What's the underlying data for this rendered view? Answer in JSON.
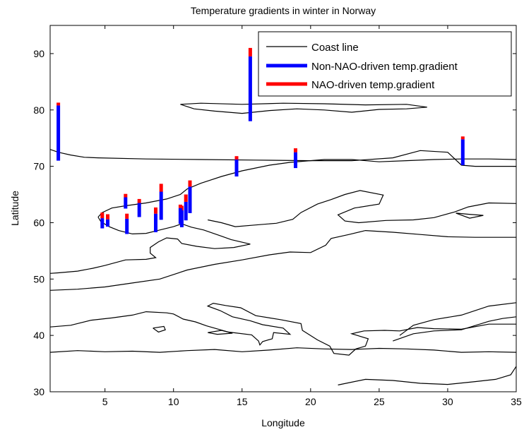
{
  "chart_data": {
    "type": "bar",
    "title": "Temperature gradients in winter in Norway",
    "xlabel": "Longitude",
    "ylabel": "Latitude",
    "xlim": [
      1,
      35
    ],
    "ylim": [
      30,
      95
    ],
    "xticks": [
      5,
      10,
      15,
      20,
      25,
      30,
      35
    ],
    "yticks": [
      30,
      40,
      50,
      60,
      70,
      80,
      90
    ],
    "grid": false,
    "legend_position": "top-right",
    "colors": {
      "coast": "#000000",
      "non_nao": "#0000ff",
      "nao": "#ff0000"
    },
    "legend": [
      {
        "label": "Coast line",
        "kind": "line",
        "color": "#000000"
      },
      {
        "label": "Non-NAO-driven temp.gradient",
        "kind": "bar",
        "color": "#0000ff"
      },
      {
        "label": "NAO-driven temp.gradient",
        "kind": "bar",
        "color": "#ff0000"
      }
    ],
    "stations": [
      {
        "lon": 1.6,
        "base": 71.0,
        "non_nao": 9.8,
        "nao": 0.5
      },
      {
        "lon": 15.6,
        "base": 78.0,
        "non_nao": 11.5,
        "nao": 1.5
      },
      {
        "lon": 31.1,
        "base": 70.2,
        "non_nao": 4.6,
        "nao": 0.5
      },
      {
        "lon": 18.9,
        "base": 69.7,
        "non_nao": 2.8,
        "nao": 0.7
      },
      {
        "lon": 14.6,
        "base": 68.2,
        "non_nao": 3.0,
        "nao": 0.6
      },
      {
        "lon": 11.2,
        "base": 61.7,
        "non_nao": 4.7,
        "nao": 1.1
      },
      {
        "lon": 10.9,
        "base": 60.4,
        "non_nao": 3.3,
        "nao": 1.3
      },
      {
        "lon": 10.6,
        "base": 59.2,
        "non_nao": 3.0,
        "nao": 0.8
      },
      {
        "lon": 10.5,
        "base": 59.8,
        "non_nao": 2.8,
        "nao": 0.6
      },
      {
        "lon": 9.1,
        "base": 60.5,
        "non_nao": 5.0,
        "nao": 1.4
      },
      {
        "lon": 8.7,
        "base": 58.3,
        "non_nao": 3.3,
        "nao": 1.1
      },
      {
        "lon": 7.5,
        "base": 61.0,
        "non_nao": 2.5,
        "nao": 0.7
      },
      {
        "lon": 6.5,
        "base": 62.5,
        "non_nao": 2.0,
        "nao": 0.6
      },
      {
        "lon": 6.6,
        "base": 58.0,
        "non_nao": 2.7,
        "nao": 0.9
      },
      {
        "lon": 5.2,
        "base": 59.3,
        "non_nao": 1.3,
        "nao": 0.9
      },
      {
        "lon": 4.8,
        "base": 59.0,
        "non_nao": 1.8,
        "nao": 1.0
      }
    ],
    "coastlines": [
      [
        [
          1,
          73.0
        ],
        [
          1.6,
          72.5
        ],
        [
          2.5,
          72.0
        ],
        [
          3.5,
          71.6
        ],
        [
          4.5,
          71.5
        ],
        [
          8,
          71.3
        ],
        [
          12,
          71.2
        ],
        [
          16,
          71.1
        ],
        [
          20,
          71.0
        ],
        [
          23,
          71.0
        ],
        [
          26,
          71.5
        ],
        [
          28,
          72.8
        ],
        [
          30,
          72.5
        ],
        [
          31,
          70.2
        ],
        [
          32,
          70.0
        ],
        [
          35,
          70.0
        ]
      ],
      [
        [
          4.5,
          61.0
        ],
        [
          4.8,
          61.8
        ],
        [
          5.5,
          62.6
        ],
        [
          6.5,
          63.0
        ],
        [
          8,
          63.5
        ],
        [
          9.5,
          64.2
        ],
        [
          10.5,
          65.0
        ],
        [
          11,
          66.0
        ],
        [
          12,
          67.0
        ],
        [
          13.5,
          68.2
        ],
        [
          15,
          69.2
        ],
        [
          17,
          70.2
        ],
        [
          18.5,
          70.7
        ],
        [
          19.5,
          70.9
        ],
        [
          21,
          71.2
        ],
        [
          23,
          71.2
        ],
        [
          25,
          70.8
        ],
        [
          27,
          71.0
        ],
        [
          29,
          71.2
        ],
        [
          31,
          71.3
        ],
        [
          33,
          71.3
        ],
        [
          35,
          71.2
        ]
      ],
      [
        [
          4.5,
          61.0
        ],
        [
          4.7,
          60.2
        ],
        [
          5.3,
          59.3
        ],
        [
          6,
          58.6
        ],
        [
          7,
          58.0
        ],
        [
          8,
          58.1
        ],
        [
          9,
          58.7
        ],
        [
          10,
          59.3
        ],
        [
          10.6,
          59.8
        ],
        [
          11.3,
          59.2
        ],
        [
          12.2,
          58.7
        ],
        [
          13.5,
          57.6
        ],
        [
          14.2,
          57.0
        ],
        [
          15.6,
          56.2
        ],
        [
          14.4,
          55.6
        ],
        [
          13,
          55.4
        ],
        [
          11.7,
          55.8
        ],
        [
          10.6,
          56.3
        ],
        [
          10.3,
          57.1
        ],
        [
          9.5,
          57.3
        ],
        [
          8.9,
          56.6
        ],
        [
          8.3,
          55.6
        ],
        [
          8.3,
          54.6
        ],
        [
          8.7,
          53.8
        ],
        [
          8.0,
          53.5
        ],
        [
          6.5,
          53.4
        ],
        [
          5,
          52.4
        ],
        [
          4.1,
          51.9
        ],
        [
          3.0,
          51.4
        ],
        [
          1.6,
          51.1
        ],
        [
          1,
          51.0
        ]
      ],
      [
        [
          12.5,
          60.5
        ],
        [
          13.5,
          60.0
        ],
        [
          14.5,
          59.3
        ],
        [
          16,
          59.6
        ],
        [
          17.5,
          59.9
        ],
        [
          18.7,
          60.6
        ],
        [
          19.3,
          61.8
        ],
        [
          20.5,
          63.3
        ],
        [
          21.5,
          64.1
        ],
        [
          22.5,
          65.0
        ],
        [
          23.6,
          65.7
        ],
        [
          25.3,
          64.9
        ],
        [
          25.0,
          63.3
        ],
        [
          23.2,
          62.6
        ],
        [
          22.0,
          61.4
        ],
        [
          22.5,
          60.3
        ],
        [
          23.5,
          60.0
        ],
        [
          25.5,
          60.4
        ],
        [
          27.5,
          60.5
        ],
        [
          29,
          60.9
        ],
        [
          30.5,
          61.9
        ],
        [
          31.5,
          62.8
        ],
        [
          33,
          63.5
        ],
        [
          35,
          63.4
        ]
      ],
      [
        [
          1,
          48.0
        ],
        [
          3,
          48.2
        ],
        [
          5,
          48.6
        ],
        [
          7,
          49.3
        ],
        [
          9,
          50.0
        ],
        [
          11,
          51.6
        ],
        [
          13,
          52.6
        ],
        [
          15,
          53.4
        ],
        [
          17,
          54.3
        ],
        [
          18.5,
          54.8
        ],
        [
          20,
          54.7
        ],
        [
          21.1,
          56.0
        ],
        [
          21.5,
          57.2
        ],
        [
          22.8,
          57.9
        ],
        [
          24,
          58.6
        ],
        [
          26,
          58.3
        ],
        [
          28,
          57.9
        ],
        [
          30,
          57.5
        ],
        [
          32,
          57.4
        ],
        [
          35,
          57.4
        ]
      ],
      [
        [
          1,
          41.5
        ],
        [
          2.5,
          41.8
        ],
        [
          4,
          42.7
        ],
        [
          5.5,
          43.1
        ],
        [
          7,
          43.6
        ],
        [
          8,
          44.2
        ],
        [
          9.5,
          44.0
        ],
        [
          10,
          43.8
        ],
        [
          10.7,
          42.9
        ],
        [
          11.6,
          42.4
        ],
        [
          12.4,
          41.7
        ],
        [
          14,
          40.6
        ],
        [
          15.7,
          40.1
        ],
        [
          16.2,
          39.0
        ],
        [
          16.3,
          38.3
        ],
        [
          16.5,
          38.9
        ],
        [
          17.2,
          39.4
        ],
        [
          17.3,
          40.5
        ],
        [
          18.5,
          40.2
        ],
        [
          18.0,
          41.3
        ],
        [
          16.5,
          41.9
        ],
        [
          15.6,
          42.6
        ],
        [
          14.3,
          43.3
        ],
        [
          13.4,
          44.4
        ],
        [
          12.5,
          45.2
        ],
        [
          12.9,
          45.7
        ],
        [
          13.8,
          45.3
        ],
        [
          14.9,
          44.9
        ],
        [
          16,
          43.5
        ],
        [
          17.8,
          42.8
        ],
        [
          19.3,
          42.1
        ],
        [
          19.4,
          40.9
        ],
        [
          20.5,
          39.2
        ],
        [
          21.4,
          38.1
        ],
        [
          21.7,
          36.8
        ],
        [
          22.8,
          36.5
        ],
        [
          23.3,
          37.6
        ],
        [
          24,
          38.1
        ],
        [
          24.2,
          39.4
        ],
        [
          23,
          40.3
        ],
        [
          23.9,
          40.8
        ],
        [
          25.4,
          40.9
        ],
        [
          26.5,
          40.8
        ],
        [
          27.8,
          41.4
        ],
        [
          29,
          41.2
        ],
        [
          31,
          41.1
        ],
        [
          33,
          42.0
        ],
        [
          35,
          42.0
        ]
      ],
      [
        [
          1,
          37.0
        ],
        [
          3,
          37.3
        ],
        [
          5,
          37.1
        ],
        [
          7,
          37.2
        ],
        [
          9,
          37.0
        ],
        [
          11,
          37.3
        ],
        [
          13,
          37.5
        ],
        [
          15,
          37.1
        ],
        [
          17,
          37.4
        ],
        [
          19,
          37.8
        ],
        [
          21,
          37.6
        ],
        [
          23,
          37.5
        ],
        [
          25,
          37.7
        ],
        [
          27,
          37.6
        ],
        [
          29,
          37.4
        ],
        [
          31,
          37.0
        ],
        [
          33,
          37.1
        ],
        [
          35,
          37.0
        ]
      ],
      [
        [
          26,
          39.0
        ],
        [
          27.5,
          40.3
        ],
        [
          29,
          40.8
        ],
        [
          31,
          41.0
        ],
        [
          33,
          42.5
        ],
        [
          34,
          43.0
        ],
        [
          35,
          43.3
        ]
      ],
      [
        [
          26.5,
          40.0
        ],
        [
          27.5,
          41.8
        ],
        [
          29,
          42.8
        ],
        [
          31,
          43.6
        ],
        [
          33,
          45.2
        ],
        [
          35,
          45.8
        ]
      ],
      [
        [
          22,
          31.2
        ],
        [
          24,
          32.2
        ],
        [
          26,
          32.0
        ],
        [
          28,
          31.5
        ],
        [
          30,
          31.3
        ],
        [
          32,
          31.8
        ],
        [
          33.5,
          32.2
        ],
        [
          34.6,
          33.0
        ],
        [
          35,
          34.5
        ]
      ],
      [
        [
          10.5,
          81.0
        ],
        [
          11.5,
          80.2
        ],
        [
          13,
          79.8
        ],
        [
          15,
          79.4
        ],
        [
          17,
          79.9
        ],
        [
          19,
          80.2
        ],
        [
          21,
          80.0
        ],
        [
          23,
          79.6
        ],
        [
          25,
          80.1
        ],
        [
          27,
          80.2
        ],
        [
          28.5,
          80.5
        ],
        [
          27,
          81.0
        ],
        [
          24,
          80.9
        ],
        [
          21,
          81.1
        ],
        [
          18,
          81.2
        ],
        [
          15,
          81.0
        ],
        [
          12,
          81.2
        ],
        [
          10.5,
          81.0
        ]
      ],
      [
        [
          8.5,
          41.3
        ],
        [
          9.3,
          41.6
        ],
        [
          9.4,
          41.0
        ],
        [
          8.9,
          40.6
        ],
        [
          8.5,
          41.3
        ]
      ],
      [
        [
          30.6,
          61.7
        ],
        [
          31.5,
          61.5
        ],
        [
          32.6,
          61.3
        ],
        [
          31.6,
          60.8
        ],
        [
          30.6,
          61.7
        ]
      ],
      [
        [
          12.5,
          40.5
        ],
        [
          13.2,
          40.2
        ],
        [
          14.3,
          40.4
        ],
        [
          13.5,
          40.9
        ],
        [
          12.5,
          40.5
        ]
      ]
    ]
  }
}
